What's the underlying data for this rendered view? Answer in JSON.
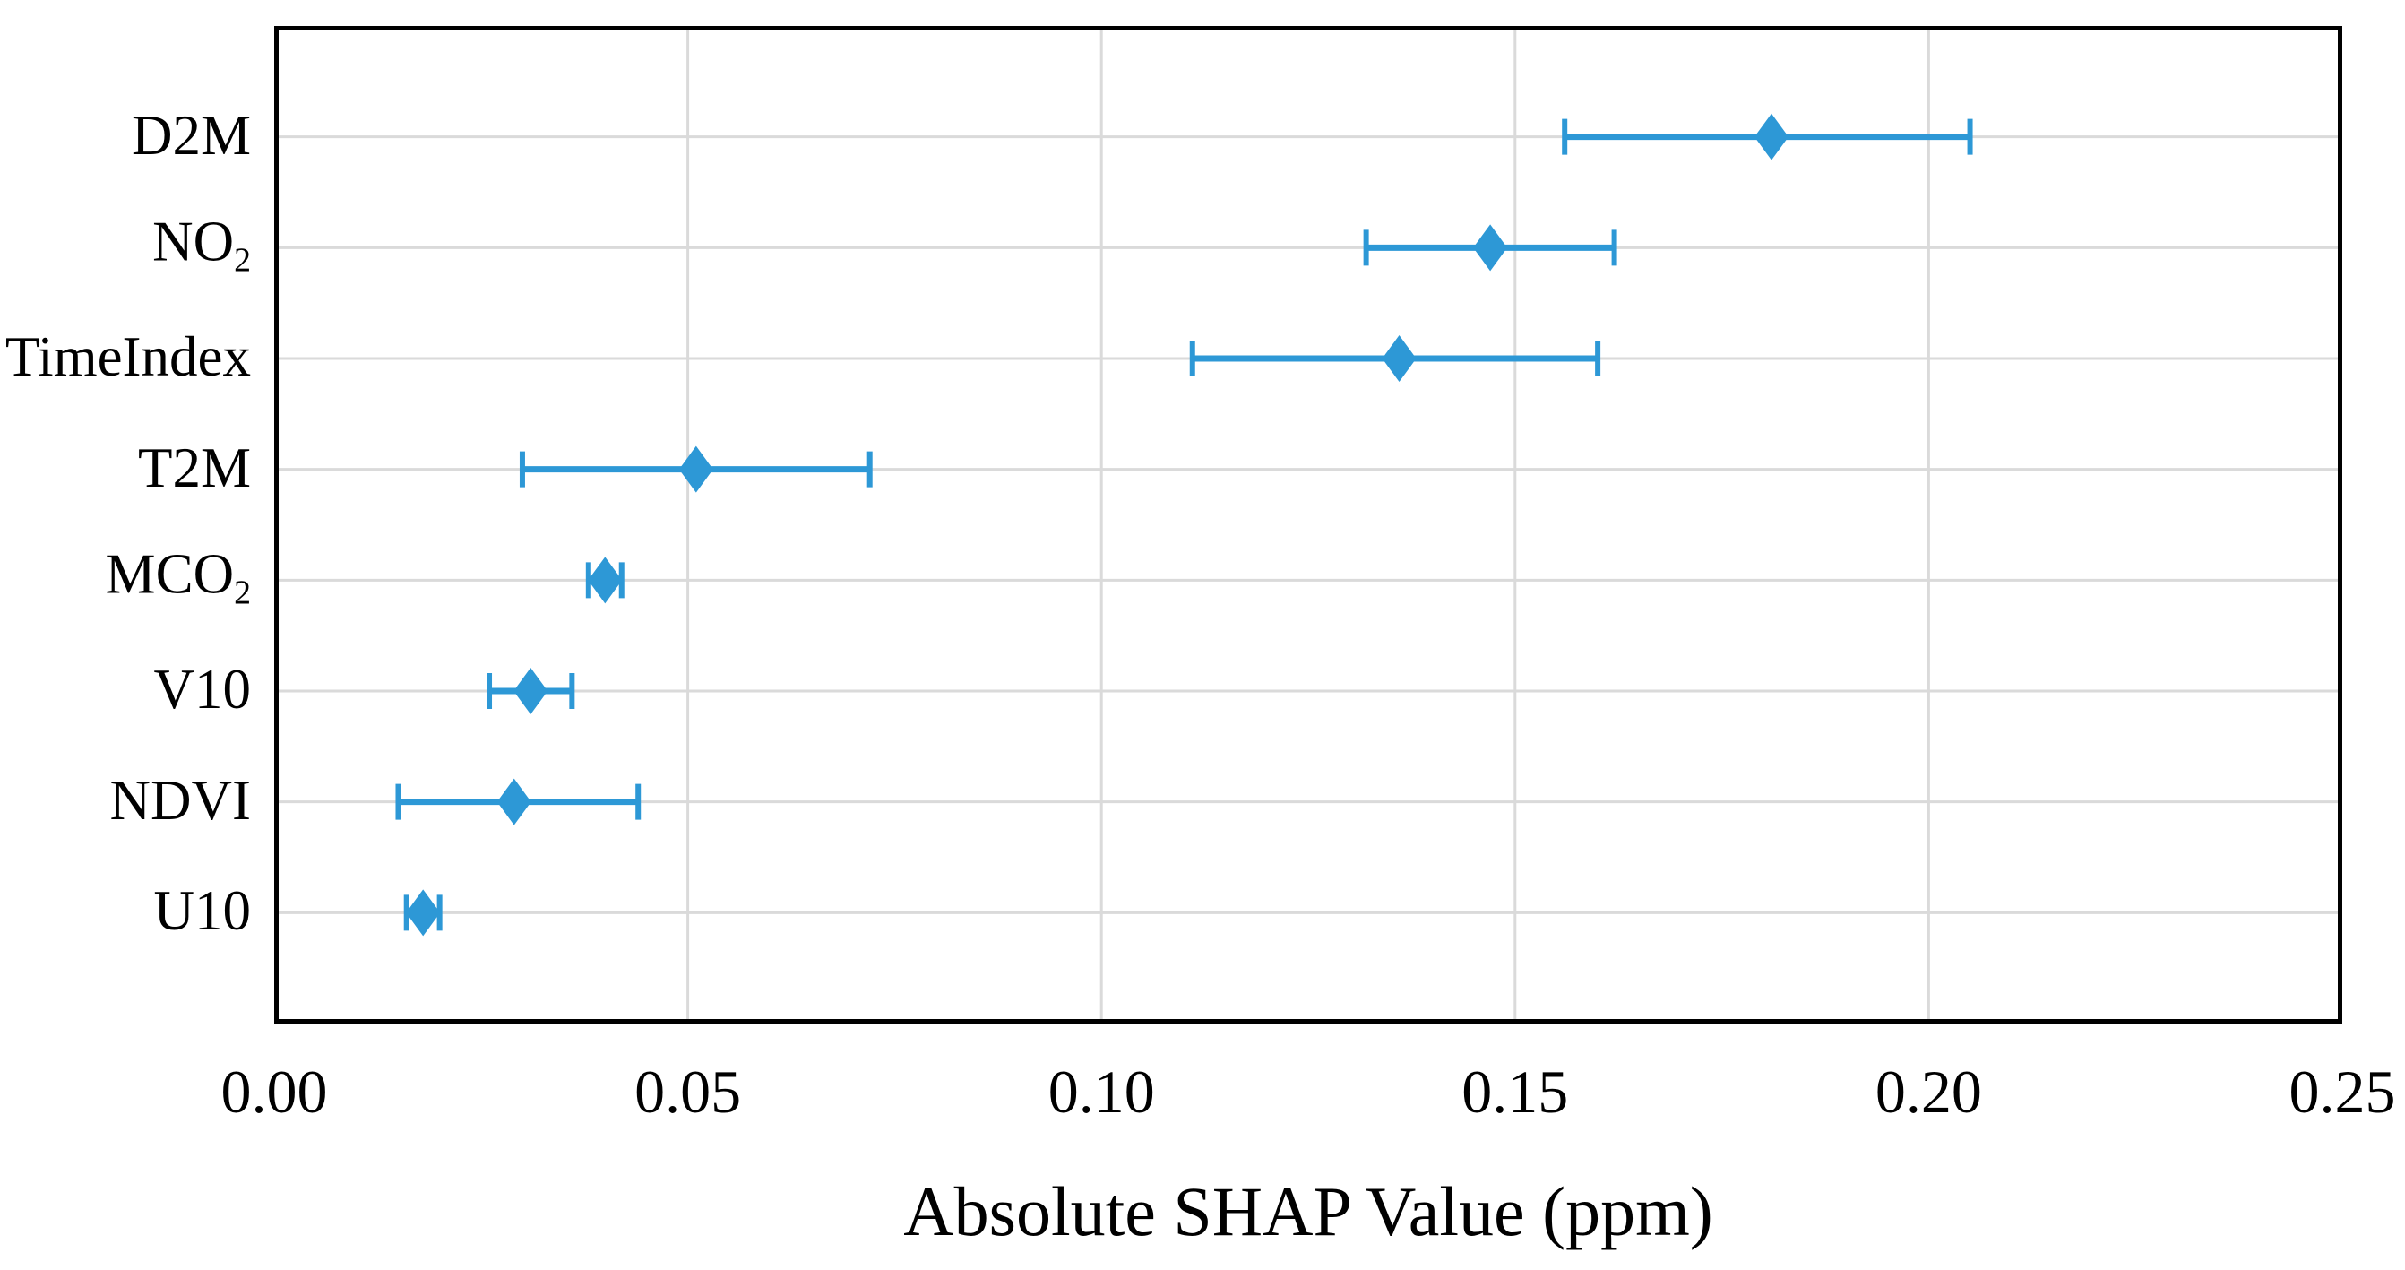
{
  "figure": {
    "background": "#ffffff"
  },
  "chart_data": {
    "type": "scatter",
    "subtype": "horizontal-error-bar",
    "marker": "diamond",
    "title": "",
    "xlabel": "Absolute SHAP Value (ppm)",
    "ylabel": "",
    "xlim": [
      0.0,
      0.25
    ],
    "grid": true,
    "legend": "none",
    "x_ticks": [
      {
        "label": "0.00",
        "value": 0.0
      },
      {
        "label": "0.05",
        "value": 0.05
      },
      {
        "label": "0.10",
        "value": 0.1
      },
      {
        "label": "0.15",
        "value": 0.15
      },
      {
        "label": "0.20",
        "value": 0.2
      },
      {
        "label": "0.25",
        "value": 0.25
      }
    ],
    "categories": [
      {
        "label": "D2M",
        "sub": "",
        "value": 0.181,
        "ci_low": 0.156,
        "ci_high": 0.205
      },
      {
        "label": "NO",
        "sub": "2",
        "value": 0.147,
        "ci_low": 0.132,
        "ci_high": 0.162
      },
      {
        "label": "TimeIndex",
        "sub": "",
        "value": 0.136,
        "ci_low": 0.111,
        "ci_high": 0.16
      },
      {
        "label": "T2M",
        "sub": "",
        "value": 0.051,
        "ci_low": 0.03,
        "ci_high": 0.072
      },
      {
        "label": "MCO",
        "sub": "2",
        "value": 0.04,
        "ci_low": 0.038,
        "ci_high": 0.042
      },
      {
        "label": "V10",
        "sub": "",
        "value": 0.031,
        "ci_low": 0.026,
        "ci_high": 0.036
      },
      {
        "label": "NDVI",
        "sub": "",
        "value": 0.029,
        "ci_low": 0.015,
        "ci_high": 0.044
      },
      {
        "label": "U10",
        "sub": "",
        "value": 0.018,
        "ci_low": 0.016,
        "ci_high": 0.02
      }
    ],
    "colors": {
      "marker": "#2D98D6",
      "error_bar": "#2D98D6",
      "grid": "#DADADA",
      "axis": "#000000",
      "text": "#000000"
    }
  }
}
